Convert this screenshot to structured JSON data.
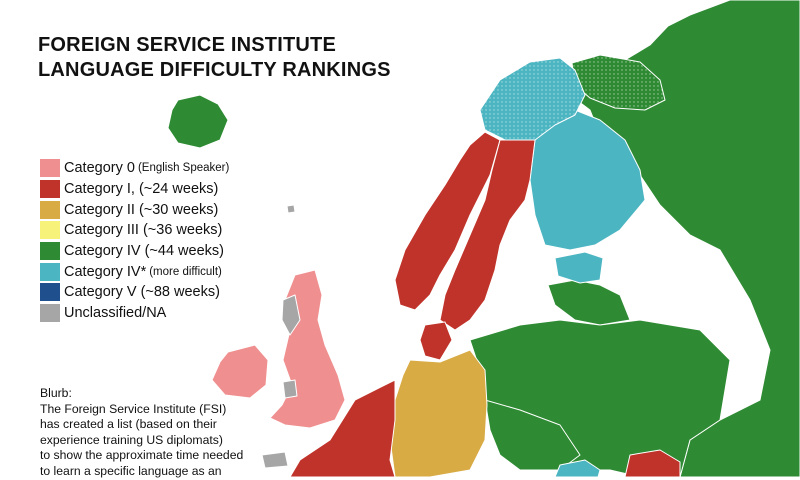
{
  "title": {
    "line1": "FOREIGN SERVICE INSTITUTE",
    "line2": "LANGUAGE DIFFICULTY RANKINGS"
  },
  "colors": {
    "sea": "#ffffff",
    "border": "#ffffff",
    "category_0": "#f08f8f",
    "category_1": "#c0332a",
    "category_2": "#d8ab45",
    "category_3": "#f7f27a",
    "category_4": "#2e8b33",
    "category_4_star": "#4bb5c1",
    "category_5": "#1f4f8c",
    "unclassified": "#a6a6a6"
  },
  "legend": [
    {
      "label": "Category 0",
      "note": "(English Speaker)",
      "color": "#f08f8f"
    },
    {
      "label": "Category I, (~24 weeks)",
      "note": "",
      "color": "#c0332a"
    },
    {
      "label": "Category II (~30 weeks)",
      "note": "",
      "color": "#d8ab45"
    },
    {
      "label": "Category III (~36 weeks)",
      "note": "",
      "color": "#f7f27a"
    },
    {
      "label": "Category IV (~44 weeks)",
      "note": "",
      "color": "#2e8b33"
    },
    {
      "label": "Category IV*",
      "note": "(more difficult)",
      "color": "#4bb5c1"
    },
    {
      "label": "Category V (~88 weeks)",
      "note": "",
      "color": "#1f4f8c"
    },
    {
      "label": "Unclassified/NA",
      "note": "",
      "color": "#a6a6a6"
    }
  ],
  "blurb": {
    "heading": "Blurb:",
    "lines": [
      "The Foreign Service Institute (FSI)",
      "has created a list (based on their",
      "experience training US diplomats)",
      "to show the approximate time needed",
      "to learn a specific language as an"
    ]
  },
  "regions": [
    {
      "id": "iceland",
      "category": "category_4"
    },
    {
      "id": "great-britain",
      "category": "category_0"
    },
    {
      "id": "ireland",
      "category": "category_0"
    },
    {
      "id": "norway",
      "category": "category_1"
    },
    {
      "id": "sweden",
      "category": "category_1"
    },
    {
      "id": "denmark",
      "category": "category_1"
    },
    {
      "id": "netherlands",
      "category": "category_1"
    },
    {
      "id": "france",
      "category": "category_1"
    },
    {
      "id": "germany",
      "category": "category_2"
    },
    {
      "id": "finland",
      "category": "category_4_star"
    },
    {
      "id": "estonia",
      "category": "category_4_star"
    },
    {
      "id": "sapmi",
      "category": "category_4_star"
    },
    {
      "id": "hungary",
      "category": "category_4_star"
    },
    {
      "id": "russia",
      "category": "category_4"
    },
    {
      "id": "baltics",
      "category": "category_4"
    },
    {
      "id": "poland",
      "category": "category_4"
    },
    {
      "id": "belarus",
      "category": "category_4"
    },
    {
      "id": "ukraine",
      "category": "category_4"
    },
    {
      "id": "czechia",
      "category": "category_4"
    },
    {
      "id": "romania",
      "category": "category_1"
    },
    {
      "id": "shetland",
      "category": "unclassified"
    },
    {
      "id": "scotland-gaelic",
      "category": "unclassified"
    },
    {
      "id": "wales",
      "category": "unclassified"
    },
    {
      "id": "brittany",
      "category": "unclassified"
    }
  ]
}
